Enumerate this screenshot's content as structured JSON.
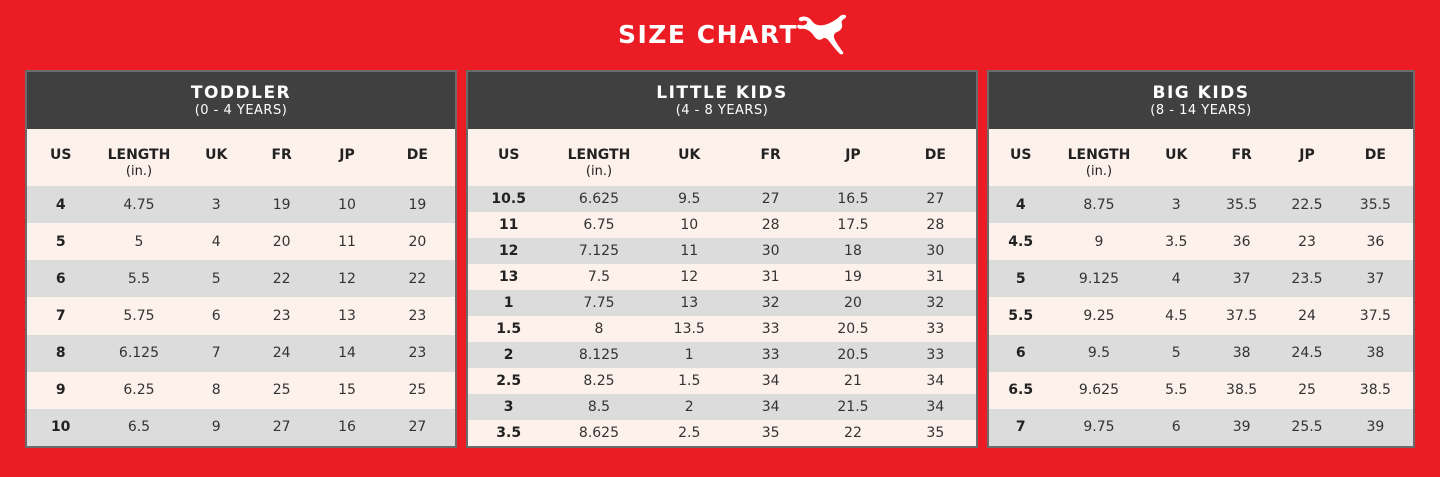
{
  "header": {
    "title": "SIZE CHART",
    "logo_icon": "puma-cat-logo",
    "background_color": "#ec1c24"
  },
  "chart_data": [
    {
      "type": "table",
      "title": "TODDLER",
      "subtitle": "(0 - 4 YEARS)",
      "columns": [
        {
          "label": "US",
          "unit": ""
        },
        {
          "label": "LENGTH",
          "unit": "(in.)"
        },
        {
          "label": "UK",
          "unit": ""
        },
        {
          "label": "FR",
          "unit": ""
        },
        {
          "label": "JP",
          "unit": ""
        },
        {
          "label": "DE",
          "unit": ""
        }
      ],
      "rows": [
        [
          "4",
          "4.75",
          "3",
          "19",
          "10",
          "19"
        ],
        [
          "5",
          "5",
          "4",
          "20",
          "11",
          "20"
        ],
        [
          "6",
          "5.5",
          "5",
          "22",
          "12",
          "22"
        ],
        [
          "7",
          "5.75",
          "6",
          "23",
          "13",
          "23"
        ],
        [
          "8",
          "6.125",
          "7",
          "24",
          "14",
          "23"
        ],
        [
          "9",
          "6.25",
          "8",
          "25",
          "15",
          "25"
        ],
        [
          "10",
          "6.5",
          "9",
          "27",
          "16",
          "27"
        ]
      ]
    },
    {
      "type": "table",
      "title": "LITTLE KIDS",
      "subtitle": "(4 - 8 YEARS)",
      "columns": [
        {
          "label": "US",
          "unit": ""
        },
        {
          "label": "LENGTH",
          "unit": "(in.)"
        },
        {
          "label": "UK",
          "unit": ""
        },
        {
          "label": "FR",
          "unit": ""
        },
        {
          "label": "JP",
          "unit": ""
        },
        {
          "label": "DE",
          "unit": ""
        }
      ],
      "rows": [
        [
          "10.5",
          "6.625",
          "9.5",
          "27",
          "16.5",
          "27"
        ],
        [
          "11",
          "6.75",
          "10",
          "28",
          "17.5",
          "28"
        ],
        [
          "12",
          "7.125",
          "11",
          "30",
          "18",
          "30"
        ],
        [
          "13",
          "7.5",
          "12",
          "31",
          "19",
          "31"
        ],
        [
          "1",
          "7.75",
          "13",
          "32",
          "20",
          "32"
        ],
        [
          "1.5",
          "8",
          "13.5",
          "33",
          "20.5",
          "33"
        ],
        [
          "2",
          "8.125",
          "1",
          "33",
          "20.5",
          "33"
        ],
        [
          "2.5",
          "8.25",
          "1.5",
          "34",
          "21",
          "34"
        ],
        [
          "3",
          "8.5",
          "2",
          "34",
          "21.5",
          "34"
        ],
        [
          "3.5",
          "8.625",
          "2.5",
          "35",
          "22",
          "35"
        ]
      ]
    },
    {
      "type": "table",
      "title": "BIG KIDS",
      "subtitle": "(8 - 14 YEARS)",
      "columns": [
        {
          "label": "US",
          "unit": ""
        },
        {
          "label": "LENGTH",
          "unit": "(in.)"
        },
        {
          "label": "UK",
          "unit": ""
        },
        {
          "label": "FR",
          "unit": ""
        },
        {
          "label": "JP",
          "unit": ""
        },
        {
          "label": "DE",
          "unit": ""
        }
      ],
      "rows": [
        [
          "4",
          "8.75",
          "3",
          "35.5",
          "22.5",
          "35.5"
        ],
        [
          "4.5",
          "9",
          "3.5",
          "36",
          "23",
          "36"
        ],
        [
          "5",
          "9.125",
          "4",
          "37",
          "23.5",
          "37"
        ],
        [
          "5.5",
          "9.25",
          "4.5",
          "37.5",
          "24",
          "37.5"
        ],
        [
          "6",
          "9.5",
          "5",
          "38",
          "24.5",
          "38"
        ],
        [
          "6.5",
          "9.625",
          "5.5",
          "38.5",
          "25",
          "38.5"
        ],
        [
          "7",
          "9.75",
          "6",
          "39",
          "25.5",
          "39"
        ]
      ]
    }
  ]
}
